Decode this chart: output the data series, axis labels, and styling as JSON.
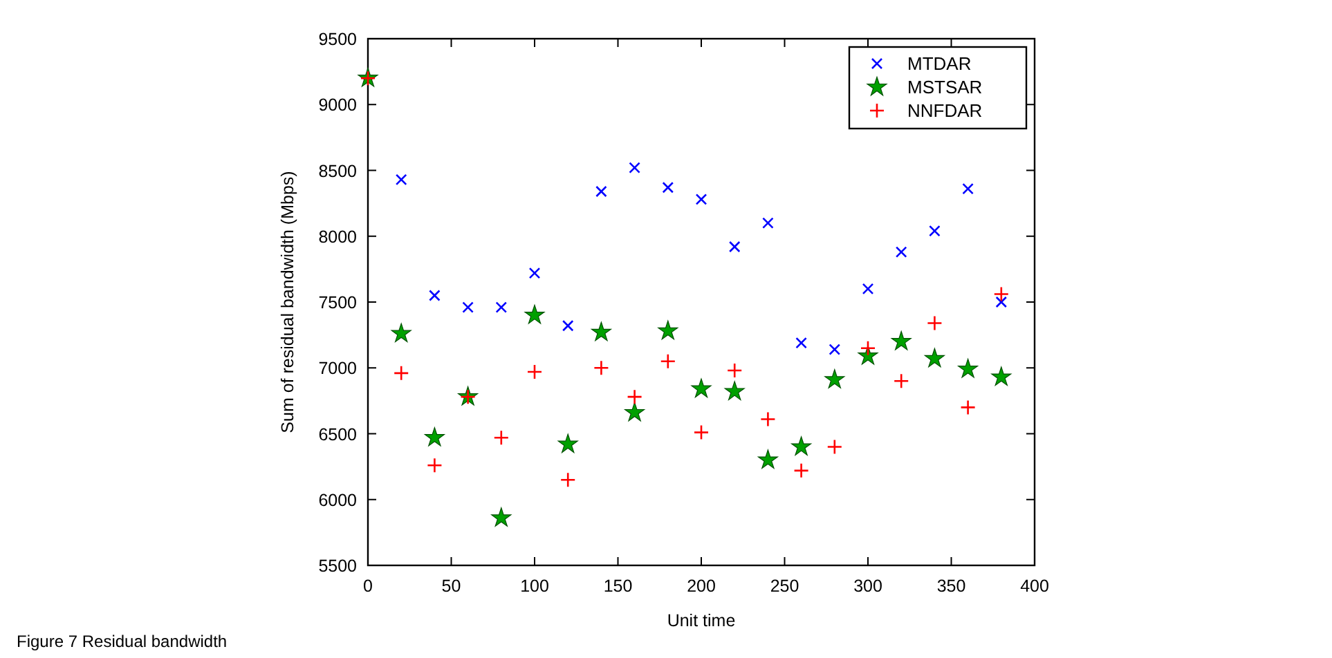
{
  "chart_data": {
    "type": "scatter",
    "xlabel": "Unit time",
    "ylabel": "Sum of residual bandwidth (Mbps)",
    "x": [
      0,
      20,
      40,
      60,
      80,
      100,
      120,
      140,
      160,
      180,
      200,
      220,
      240,
      260,
      280,
      300,
      320,
      340,
      360,
      380
    ],
    "series": [
      {
        "name": "MTDAR",
        "color": "#0000ff",
        "marker": "cross",
        "values": [
          null,
          8430,
          7550,
          7460,
          7460,
          7720,
          7320,
          8340,
          8520,
          8370,
          8280,
          7920,
          8100,
          7190,
          7140,
          7600,
          7880,
          8040,
          8360,
          7500
        ]
      },
      {
        "name": "MSTSAR",
        "color": "#00a000",
        "marker": "star",
        "values": [
          9200,
          7260,
          6470,
          6780,
          5860,
          7400,
          6420,
          7270,
          6660,
          7280,
          6840,
          6820,
          6300,
          6400,
          6910,
          7090,
          7200,
          7070,
          6990,
          6930
        ]
      },
      {
        "name": "NNFDAR",
        "color": "#ff0000",
        "marker": "plus",
        "values": [
          9200,
          6960,
          6260,
          6780,
          6470,
          6970,
          6150,
          7000,
          6780,
          7050,
          6510,
          6980,
          6610,
          6220,
          6400,
          7150,
          6900,
          7340,
          6700,
          7560
        ]
      }
    ],
    "xlim": [
      0,
      400
    ],
    "xticks": [
      0,
      50,
      100,
      150,
      200,
      250,
      300,
      350,
      400
    ],
    "ylim": [
      5500,
      9500
    ],
    "yticks": [
      5500,
      6000,
      6500,
      7000,
      7500,
      8000,
      8500,
      9000,
      9500
    ],
    "grid": false,
    "legend": "top right",
    "annotations": [
      "Figure 7 Residual bandwidth"
    ]
  }
}
